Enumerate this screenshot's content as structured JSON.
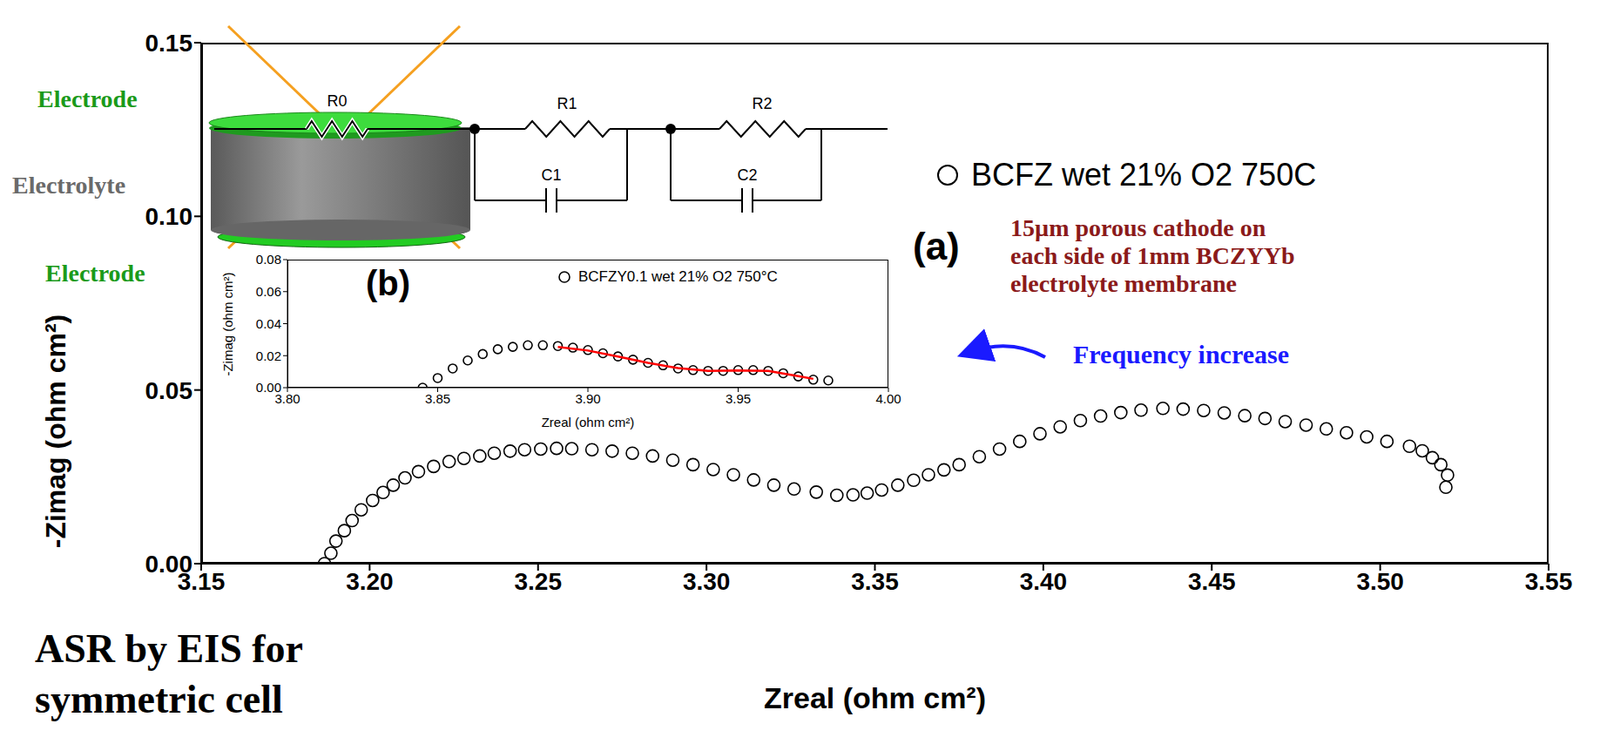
{
  "chart_data": [
    {
      "type": "scatter",
      "panel": "(a)",
      "xlabel": "Zreal (ohm cm²)",
      "ylabel": "-Zimag (ohm cm²)",
      "xlim": [
        3.15,
        3.55
      ],
      "xticks": [
        3.15,
        {
          "value": 3.2,
          "label": "3.20"
        },
        3.25,
        {
          "value": 3.3,
          "label": "3.30"
        },
        3.35,
        {
          "value": 3.4,
          "label": "3.40"
        },
        3.45,
        {
          "value": 3.5,
          "label": "3.50"
        },
        3.55
      ],
      "ylim": [
        0,
        0.15
      ],
      "yticks": [
        {
          "value": 0,
          "label": "0.00"
        },
        0.05,
        {
          "value": 0.1,
          "label": "0.10"
        },
        0.15
      ],
      "grid": false,
      "legend": "upper right",
      "series": [
        {
          "name": "BCFZ wet 21% O2 750C",
          "color": "#000000",
          "marker": "open circle",
          "x": [
            3.1866,
            3.1885,
            3.19,
            3.1925,
            3.1948,
            3.1975,
            3.2009,
            3.204,
            3.207,
            3.2105,
            3.2145,
            3.219,
            3.2236,
            3.228,
            3.2327,
            3.237,
            3.2417,
            3.246,
            3.2508,
            3.2555,
            3.26,
            3.266,
            3.272,
            3.278,
            3.284,
            3.29,
            3.296,
            3.302,
            3.308,
            3.314,
            3.32,
            3.326,
            3.3326,
            3.3387,
            3.3435,
            3.3477,
            3.352,
            3.3568,
            3.3615,
            3.3659,
            3.3705,
            3.375,
            3.381,
            3.387,
            3.393,
            3.399,
            3.405,
            3.411,
            3.417,
            3.423,
            3.429,
            3.4355,
            3.4415,
            3.4476,
            3.4537,
            3.4598,
            3.4658,
            3.4718,
            3.478,
            3.484,
            3.49,
            3.496,
            3.502,
            3.5087,
            3.5125,
            3.5155,
            3.518,
            3.52,
            3.5195
          ],
          "values": [
            0.0,
            0.003,
            0.0065,
            0.0095,
            0.0124,
            0.0155,
            0.0182,
            0.0205,
            0.0226,
            0.0247,
            0.0265,
            0.028,
            0.0294,
            0.0303,
            0.031,
            0.0318,
            0.0324,
            0.0328,
            0.033,
            0.0332,
            0.0331,
            0.0328,
            0.0324,
            0.0318,
            0.031,
            0.0298,
            0.0285,
            0.0271,
            0.0256,
            0.0241,
            0.0226,
            0.0215,
            0.0206,
            0.0197,
            0.0198,
            0.0203,
            0.0212,
            0.0226,
            0.024,
            0.0256,
            0.027,
            0.0285,
            0.0308,
            0.033,
            0.0352,
            0.0374,
            0.0394,
            0.0412,
            0.0425,
            0.0435,
            0.0442,
            0.0447,
            0.0445,
            0.0441,
            0.0434,
            0.0426,
            0.0418,
            0.0409,
            0.0399,
            0.0388,
            0.0377,
            0.0365,
            0.0352,
            0.0338,
            0.0325,
            0.0305,
            0.0285,
            0.0255,
            0.022
          ]
        }
      ],
      "annotations": [
        {
          "text": "Frequency increase",
          "color": "#1a1aff"
        },
        {
          "lines": [
            "15µm porous cathode on",
            "each side of 1mm BCZYYb",
            "electrolyte membrane"
          ],
          "color": "#8b1a1a"
        }
      ]
    },
    {
      "type": "scatter",
      "panel": "(b)",
      "xlabel": "Zreal (ohm cm²)",
      "ylabel": "-Zimag (ohm cm²)",
      "xlim": [
        3.8,
        4.0
      ],
      "xticks": [
        {
          "value": 3.8,
          "label": "3.80"
        },
        3.85,
        {
          "value": 3.9,
          "label": "3.90"
        },
        3.95,
        {
          "value": 4.0,
          "label": "4.00"
        }
      ],
      "ylim": [
        0,
        0.08
      ],
      "yticks": [
        {
          "value": 0,
          "label": "0.00"
        },
        0.02,
        0.04,
        0.06,
        0.08
      ],
      "grid": false,
      "legend": "upper right",
      "series": [
        {
          "name": "BCFZY0.1 wet 21% O2 750°C",
          "color": "#000000",
          "marker": "open circle",
          "x": [
            3.845,
            3.85,
            3.855,
            3.86,
            3.865,
            3.87,
            3.875,
            3.88,
            3.885,
            3.89,
            3.895,
            3.9,
            3.905,
            3.91,
            3.915,
            3.92,
            3.925,
            3.93,
            3.935,
            3.94,
            3.945,
            3.95,
            3.955,
            3.96,
            3.965,
            3.97,
            3.975,
            3.98
          ],
          "values": [
            0.0,
            0.006,
            0.012,
            0.017,
            0.021,
            0.024,
            0.0255,
            0.0265,
            0.0265,
            0.026,
            0.025,
            0.0235,
            0.0215,
            0.0195,
            0.0175,
            0.0155,
            0.014,
            0.012,
            0.011,
            0.0105,
            0.0105,
            0.011,
            0.011,
            0.0105,
            0.009,
            0.007,
            0.005,
            0.0045
          ]
        },
        {
          "type": "line",
          "color": "#ff0000",
          "line_style": "solid",
          "x": [
            3.89,
            3.9,
            3.91,
            3.92,
            3.93,
            3.94,
            3.95,
            3.96,
            3.97,
            3.975
          ],
          "values": [
            0.0255,
            0.0232,
            0.0195,
            0.0155,
            0.0122,
            0.0105,
            0.0108,
            0.0105,
            0.0072,
            0.0055
          ]
        }
      ]
    }
  ],
  "diagram": {
    "electrode_top": "Electrode",
    "electrolyte": "Electrolyte",
    "electrode_bottom": "Electrode",
    "circuit": [
      "R0",
      "R1",
      "C1",
      "R2",
      "C2"
    ]
  },
  "caption": [
    "ASR by EIS for",
    "symmetric cell"
  ]
}
